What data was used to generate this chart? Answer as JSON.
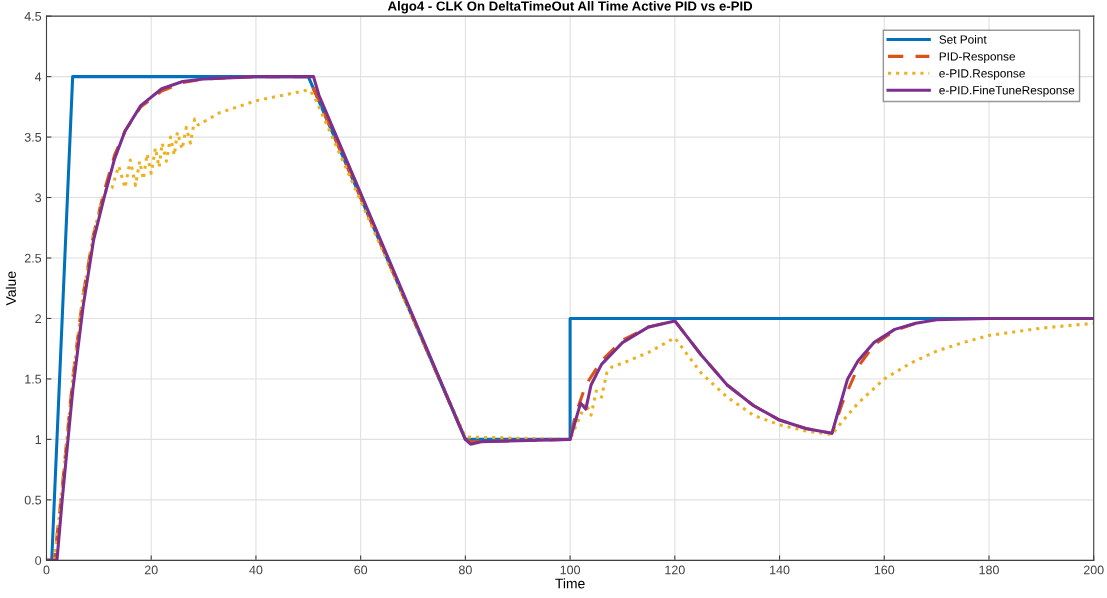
{
  "chart_data": {
    "type": "line",
    "title": "Algo4 - CLK On DeltaTimeOut All Time Active PID vs e-PID",
    "xlabel": "Time",
    "ylabel": "Value",
    "xlim": [
      0,
      200
    ],
    "xticks": [
      0,
      20,
      40,
      60,
      80,
      100,
      120,
      140,
      160,
      180,
      200
    ],
    "ylim": [
      0,
      4.5
    ],
    "yticks": [
      0,
      0.5,
      1,
      1.5,
      2,
      2.5,
      3,
      3.5,
      4,
      4.5
    ],
    "grid": true,
    "legend": "top right",
    "series": [
      {
        "name": "Set Point",
        "color": "#0072bd",
        "line_style": "solid",
        "x": [
          0,
          1,
          5,
          50,
          80,
          100,
          100,
          200
        ],
        "values": [
          0,
          0,
          4,
          4,
          1,
          1,
          2,
          2
        ]
      },
      {
        "name": "PID-Response",
        "color": "#d95319",
        "line_style": "dashed",
        "x": [
          0,
          1.5,
          3,
          5,
          7,
          9,
          11,
          13,
          15,
          18,
          22,
          26,
          30,
          40,
          50,
          51,
          80,
          81,
          100,
          101,
          103,
          106,
          110,
          115,
          120,
          125,
          130,
          135,
          140,
          145,
          150,
          152,
          155,
          158,
          162,
          166
        ],
        "values": [
          0,
          0,
          0.6,
          1.5,
          2.2,
          2.7,
          3.05,
          3.35,
          3.55,
          3.75,
          3.88,
          3.95,
          3.98,
          4.0,
          4.0,
          3.9,
          1.0,
          0.98,
          1.0,
          1.2,
          1.45,
          1.65,
          1.82,
          1.93,
          1.98,
          1.7,
          1.45,
          1.28,
          1.16,
          1.09,
          1.05,
          1.3,
          1.6,
          1.78,
          1.9,
          1.96
        ]
      },
      {
        "name": "e-PID.Response",
        "color": "#edb120",
        "line_style": "dotted",
        "x": [
          0,
          1.5,
          3,
          5,
          7,
          9,
          11,
          12.5,
          13.8,
          15,
          16,
          17,
          17.8,
          18.5,
          19.2,
          20,
          20.8,
          21.5,
          22.1,
          22.9,
          23.7,
          24.4,
          25,
          25.9,
          26.7,
          27.5,
          28.3,
          29,
          33,
          40,
          50,
          51,
          80,
          100,
          101,
          103,
          104,
          105,
          106,
          107,
          108,
          110,
          115,
          120,
          125,
          130,
          135,
          140,
          145,
          150,
          152,
          155,
          160,
          165,
          170,
          175,
          180,
          190,
          200
        ],
        "values": [
          0,
          0,
          0.6,
          1.5,
          2.2,
          2.7,
          3.05,
          3.08,
          3.26,
          3.08,
          3.31,
          3.1,
          3.3,
          3.15,
          3.36,
          3.2,
          3.41,
          3.25,
          3.45,
          3.3,
          3.5,
          3.35,
          3.54,
          3.4,
          3.58,
          3.45,
          3.65,
          3.6,
          3.7,
          3.8,
          3.89,
          3.85,
          1.02,
          1.0,
          1.1,
          1.3,
          1.2,
          1.4,
          1.35,
          1.55,
          1.6,
          1.63,
          1.72,
          1.84,
          1.55,
          1.35,
          1.2,
          1.12,
          1.07,
          1.04,
          1.15,
          1.3,
          1.5,
          1.63,
          1.73,
          1.8,
          1.86,
          1.92,
          1.96
        ]
      },
      {
        "name": "e-PID.FineTuneResponse",
        "color": "#7e2f8e",
        "line_style": "solid",
        "x": [
          0,
          2,
          3,
          5,
          7,
          9,
          11,
          13,
          15,
          18,
          22,
          26,
          30,
          40,
          51,
          52,
          80,
          81,
          83,
          100,
          101,
          102,
          103,
          104,
          106,
          110,
          115,
          120,
          125,
          130,
          135,
          140,
          145,
          150,
          151,
          153,
          155,
          158,
          162,
          166,
          170,
          180,
          200
        ],
        "values": [
          0,
          0,
          0.5,
          1.4,
          2.1,
          2.65,
          3.0,
          3.32,
          3.55,
          3.76,
          3.9,
          3.96,
          3.98,
          4.0,
          4.0,
          3.85,
          1.0,
          0.96,
          0.98,
          1.0,
          1.15,
          1.3,
          1.25,
          1.45,
          1.62,
          1.8,
          1.93,
          1.98,
          1.7,
          1.45,
          1.28,
          1.16,
          1.09,
          1.05,
          1.2,
          1.5,
          1.65,
          1.8,
          1.91,
          1.96,
          1.99,
          2.0,
          2.0
        ]
      }
    ]
  }
}
